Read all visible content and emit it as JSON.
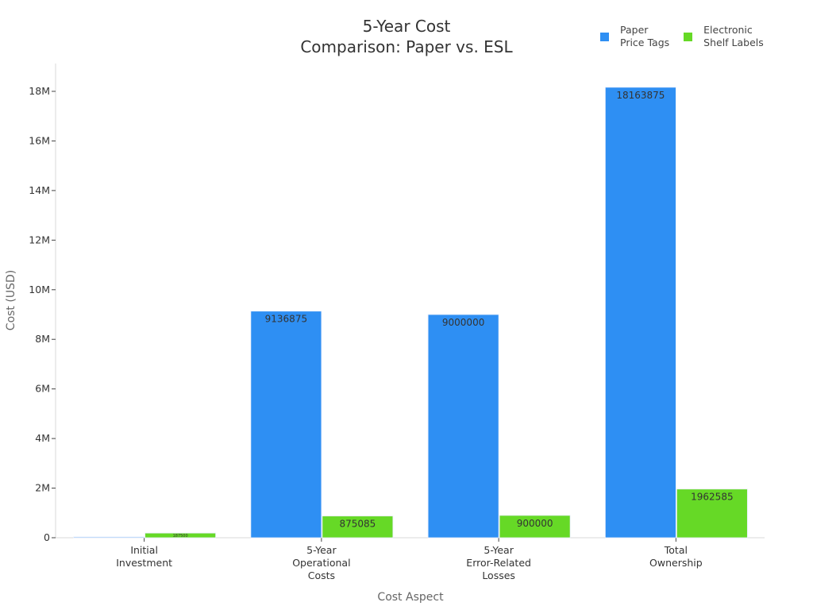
{
  "title_line1": "5-Year Cost",
  "title_line2": "Comparison: Paper vs. ESL",
  "legend": [
    {
      "label": "Paper\nPrice Tags",
      "color": "#2e8ff3"
    },
    {
      "label": "Electronic\nShelf Labels",
      "color": "#66d926"
    }
  ],
  "chart_data": {
    "type": "bar",
    "title": "5-Year Cost Comparison: Paper vs. ESL",
    "xlabel": "Cost Aspect",
    "ylabel": "Cost (USD)",
    "categories": [
      "Initial\nInvestment",
      "5-Year\nOperational\nCosts",
      "5-Year\nError-Related\nLosses",
      "Total\nOwnership"
    ],
    "series": [
      {
        "name": "Paper Price Tags",
        "color": "#2e8ff3",
        "values": [
          27000,
          9136875,
          9000000,
          18163875
        ],
        "labels": [
          "",
          "9136875",
          "9000000",
          "18163875"
        ]
      },
      {
        "name": "Electronic Shelf Labels",
        "color": "#66d926",
        "values": [
          187500,
          875085,
          900000,
          1962585
        ],
        "labels": [
          "187500",
          "875085",
          "900000",
          "1962585"
        ]
      }
    ],
    "yticks": [
      0,
      2000000,
      4000000,
      6000000,
      8000000,
      10000000,
      12000000,
      14000000,
      16000000,
      18000000
    ],
    "ytick_labels": [
      "0",
      "2M",
      "4M",
      "6M",
      "8M",
      "10M",
      "12M",
      "14M",
      "16M",
      "18M"
    ],
    "ylim": [
      0,
      19000000
    ],
    "grid": false,
    "legend_position": "top-right"
  }
}
